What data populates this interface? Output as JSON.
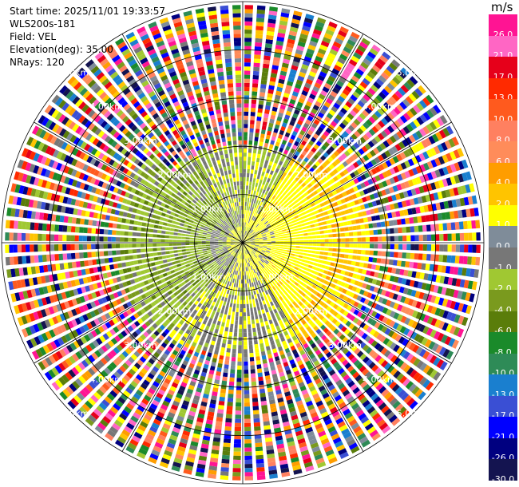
{
  "header": {
    "start_time": "Start time: 2025/11/01 19:33:57",
    "station": "WLS200s-181",
    "field": "Field: VEL",
    "elevation": "Elevation(deg): 35.00",
    "nrays": "NRays: 120"
  },
  "range_rings": [
    {
      "label": "1.00km",
      "km": 1
    },
    {
      "label": "2.00km",
      "km": 2
    },
    {
      "label": "3.00km",
      "km": 3
    },
    {
      "label": "4.00km",
      "km": 4
    },
    {
      "label": "5.00km",
      "km": 5
    }
  ],
  "colorbar": {
    "unit": "m/s",
    "ticks": [
      "26.0",
      "21.0",
      "17.0",
      "13.0",
      "10.0",
      "8.0",
      "6.0",
      "4.0",
      "2.0",
      "1.0",
      "0.0",
      "-1.0",
      "-2.0",
      "-4.0",
      "-6.0",
      "-8.0",
      "-10.0",
      "-13.0",
      "-17.0",
      "-21.0",
      "-26.0",
      "-30.0"
    ],
    "colors": [
      "#ff1493",
      "#ff66c4",
      "#e6001a",
      "#ff2a00",
      "#ff5a1e",
      "#ff8060",
      "#ff8c5a",
      "#ff9d00",
      "#ffc400",
      "#ffff00",
      "#7f8c99",
      "#777777",
      "#a0c832",
      "#7a9a1e",
      "#5a7d0a",
      "#1a8a2a",
      "#2e8b57",
      "#1a7fcf",
      "#3a4fd4",
      "#0000ff",
      "#000080",
      "#141450"
    ]
  },
  "chart_data": {
    "type": "ppi",
    "field": "VEL",
    "unit": "m/s",
    "nrays": 120,
    "elevation_deg": 35.0,
    "max_range_km": 5.0,
    "colorbar_range": [
      -30.0,
      26.0
    ],
    "sectors": [
      {
        "region": "west",
        "dominant_velocity": -2.0
      },
      {
        "region": "east",
        "dominant_velocity": 2.0
      },
      {
        "region": "center",
        "dominant_velocity": 0.0
      },
      {
        "region": "outer",
        "dominant_velocity": "noise"
      }
    ]
  }
}
